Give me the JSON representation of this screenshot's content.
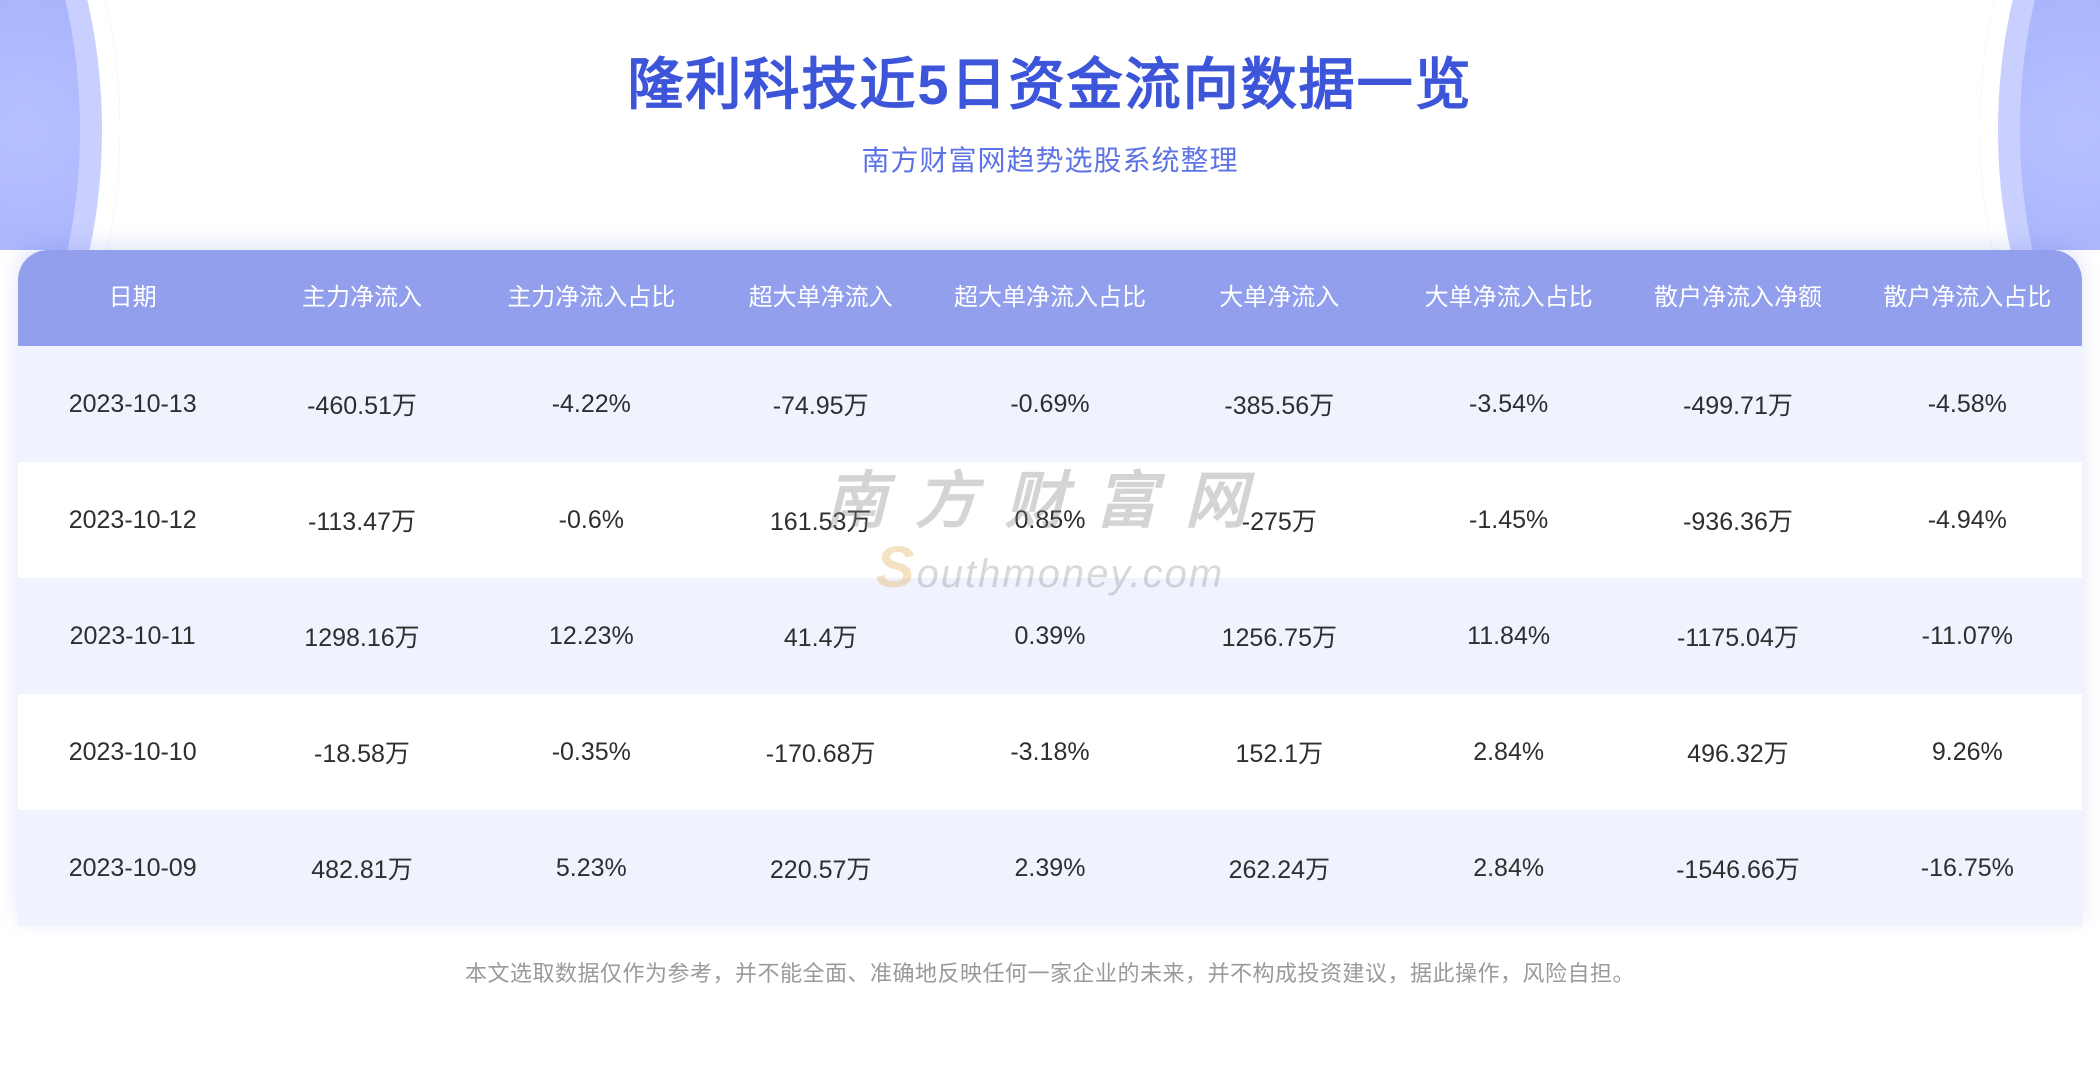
{
  "header": {
    "title": "隆利科技近5日资金流向数据一览",
    "subtitle": "南方财富网趋势选股系统整理",
    "title_color": "#3d55d9",
    "subtitle_color": "#5d72e4",
    "title_fontsize": 56,
    "subtitle_fontsize": 28
  },
  "decor": {
    "arc_primary": "#a8b3fb",
    "arc_accent": "#8d9cf9",
    "arc_inner_ring": "#c9d0ff"
  },
  "table": {
    "header_bg": "#919fec",
    "header_text_color": "#ffffff",
    "header_fontsize": 24,
    "body_fontsize": 25,
    "row_odd_bg": "#f0f3fd",
    "row_even_bg": "#ffffff",
    "cell_text_color": "#2e2e2e",
    "columns": [
      "日期",
      "主力净流入",
      "主力净流入占比",
      "超大单净流入",
      "超大单净流入占比",
      "大单净流入",
      "大单净流入占比",
      "散户净流入净额",
      "散户净流入占比"
    ],
    "rows": [
      [
        "2023-10-13",
        "-460.51万",
        "-4.22%",
        "-74.95万",
        "-0.69%",
        "-385.56万",
        "-3.54%",
        "-499.71万",
        "-4.58%"
      ],
      [
        "2023-10-12",
        "-113.47万",
        "-0.6%",
        "161.53万",
        "0.85%",
        "-275万",
        "-1.45%",
        "-936.36万",
        "-4.94%"
      ],
      [
        "2023-10-11",
        "1298.16万",
        "12.23%",
        "41.4万",
        "0.39%",
        "1256.75万",
        "11.84%",
        "-1175.04万",
        "-11.07%"
      ],
      [
        "2023-10-10",
        "-18.58万",
        "-0.35%",
        "-170.68万",
        "-3.18%",
        "152.1万",
        "2.84%",
        "496.32万",
        "9.26%"
      ],
      [
        "2023-10-09",
        "482.81万",
        "5.23%",
        "220.57万",
        "2.39%",
        "262.24万",
        "2.84%",
        "-1546.66万",
        "-16.75%"
      ]
    ]
  },
  "footnote": "本文选取数据仅作为参考，并不能全面、准确地反映任何一家企业的未来，并不构成投资建议，据此操作，风险自担。",
  "watermark": {
    "zh": "南方财富网",
    "en_accent": "S",
    "en_rest": "outhmoney.com",
    "zh_color": "#7d7d7d",
    "en_color": "#8a8a8a",
    "accent_color": "#e0a648",
    "opacity": 0.32
  }
}
